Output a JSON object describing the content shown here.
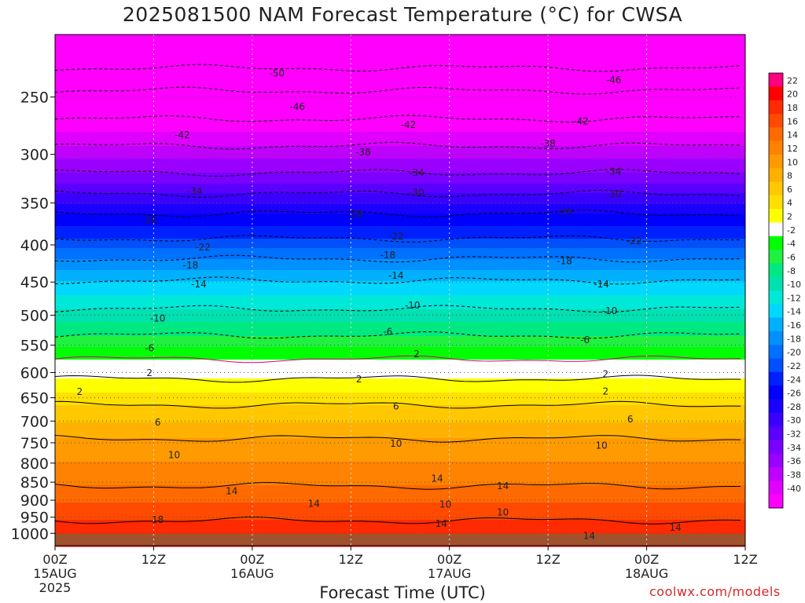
{
  "title": "2025081500 NAM Forecast Temperature (°C) for CWSA",
  "xlabel": "Forecast Time (UTC)",
  "credit": "coolwx.com/models",
  "chart_data": {
    "type": "heatmap",
    "title": "2025081500 NAM Forecast Temperature (°C) for CWSA",
    "xlabel": "Forecast Time (UTC)",
    "ylabel": "",
    "x_range_hours": [
      0,
      84
    ],
    "y_scale": "log (pressure, inverted)",
    "y_range_hpa": [
      1040,
      205
    ],
    "x_ticks": [
      {
        "h": 0,
        "t": "00Z",
        "d": "15AUG",
        "y": "2025"
      },
      {
        "h": 12,
        "t": "12Z",
        "d": "",
        "y": ""
      },
      {
        "h": 24,
        "t": "00Z",
        "d": "16AUG",
        "y": ""
      },
      {
        "h": 36,
        "t": "12Z",
        "d": "",
        "y": ""
      },
      {
        "h": 48,
        "t": "00Z",
        "d": "17AUG",
        "y": ""
      },
      {
        "h": 60,
        "t": "12Z",
        "d": "",
        "y": ""
      },
      {
        "h": 72,
        "t": "00Z",
        "d": "18AUG",
        "y": ""
      },
      {
        "h": 84,
        "t": "12Z",
        "d": "",
        "y": ""
      }
    ],
    "y_ticks": [
      "250",
      "300",
      "350",
      "400",
      "450",
      "500",
      "550",
      "600",
      "650",
      "700",
      "750",
      "800",
      "850",
      "900",
      "950",
      "1000"
    ],
    "colorbar": {
      "labels": [
        "22",
        "20",
        "18",
        "16",
        "14",
        "12",
        "10",
        "8",
        "6",
        "4",
        "2",
        "-2",
        "-4",
        "-6",
        "-8",
        "-10",
        "-12",
        "-14",
        "-16",
        "-18",
        "-20",
        "-22",
        "-24",
        "-26",
        "-28",
        "-30",
        "-32",
        "-34",
        "-36",
        "-38",
        "-40"
      ],
      "colors": [
        "#ff0080",
        "#ff0000",
        "#ff2a00",
        "#ff4a00",
        "#ff6a00",
        "#ff8200",
        "#ff9a00",
        "#ffb000",
        "#ffc800",
        "#ffe000",
        "#ffff00",
        "#ffffff",
        "#00ff00",
        "#20f040",
        "#00e880",
        "#00e0b0",
        "#00e8d8",
        "#00d8ff",
        "#00b0ff",
        "#0090ff",
        "#0070ff",
        "#0050ff",
        "#0020ff",
        "#0000ff",
        "#1a00ff",
        "#3a00ff",
        "#5a00ff",
        "#7a00ff",
        "#9a00ff",
        "#c000ff",
        "#e000ff",
        "#ff00ff"
      ]
    },
    "isotherm_profile_hpa": [
      {
        "temp": -50,
        "p": 228
      },
      {
        "temp": -46,
        "p": 245
      },
      {
        "temp": -42,
        "p": 268
      },
      {
        "temp": -38,
        "p": 292
      },
      {
        "temp": -34,
        "p": 318
      },
      {
        "temp": -30,
        "p": 340
      },
      {
        "temp": -26,
        "p": 362
      },
      {
        "temp": -22,
        "p": 392
      },
      {
        "temp": -18,
        "p": 418
      },
      {
        "temp": -14,
        "p": 448
      },
      {
        "temp": -10,
        "p": 490
      },
      {
        "temp": -6,
        "p": 533
      },
      {
        "temp": -2,
        "p": 575
      },
      {
        "temp": 2,
        "p": 612
      },
      {
        "temp": 6,
        "p": 665
      },
      {
        "temp": 10,
        "p": 740
      },
      {
        "temp": 14,
        "p": 860
      },
      {
        "temp": 18,
        "p": 960
      }
    ],
    "contour_labels": [
      {
        "v": "-50",
        "h": 27,
        "p": 232
      },
      {
        "v": "-46",
        "h": 29.5,
        "p": 258
      },
      {
        "v": "-46",
        "h": 68,
        "p": 237
      },
      {
        "v": "-42",
        "h": 15.5,
        "p": 282
      },
      {
        "v": "-42",
        "h": 43,
        "p": 273
      },
      {
        "v": "-42",
        "h": 64,
        "p": 270
      },
      {
        "v": "-38",
        "h": 37.5,
        "p": 298
      },
      {
        "v": "-38",
        "h": 60,
        "p": 290
      },
      {
        "v": "-34",
        "h": 17,
        "p": 337
      },
      {
        "v": "-34",
        "h": 44,
        "p": 318
      },
      {
        "v": "-34",
        "h": 68,
        "p": 317
      },
      {
        "v": "-30",
        "h": 44,
        "p": 339
      },
      {
        "v": "-30",
        "h": 68,
        "p": 340
      },
      {
        "v": "-26",
        "h": 11.5,
        "p": 370
      },
      {
        "v": "-26",
        "h": 36.5,
        "p": 363
      },
      {
        "v": "-26",
        "h": 62,
        "p": 360
      },
      {
        "v": "-22",
        "h": 18,
        "p": 403
      },
      {
        "v": "-22",
        "h": 41.5,
        "p": 389
      },
      {
        "v": "-22",
        "h": 70.5,
        "p": 395
      },
      {
        "v": "-18",
        "h": 16.5,
        "p": 427
      },
      {
        "v": "-18",
        "h": 40.5,
        "p": 413
      },
      {
        "v": "-18",
        "h": 62,
        "p": 421
      },
      {
        "v": "-14",
        "h": 17.5,
        "p": 453
      },
      {
        "v": "-14",
        "h": 41.5,
        "p": 441
      },
      {
        "v": "-14",
        "h": 66.5,
        "p": 453
      },
      {
        "v": "-10",
        "h": 12.5,
        "p": 505
      },
      {
        "v": "-10",
        "h": 43.5,
        "p": 485
      },
      {
        "v": "-10",
        "h": 67.5,
        "p": 493
      },
      {
        "v": "-6",
        "h": 11.5,
        "p": 555
      },
      {
        "v": "-6",
        "h": 40.5,
        "p": 527
      },
      {
        "v": "-6",
        "h": 64.5,
        "p": 541
      },
      {
        "v": "2",
        "h": 11.5,
        "p": 601
      },
      {
        "v": "2",
        "h": 44,
        "p": 566
      },
      {
        "v": "2",
        "h": 67,
        "p": 603
      },
      {
        "v": "2",
        "h": 3,
        "p": 638
      },
      {
        "v": "2",
        "h": 37,
        "p": 613
      },
      {
        "v": "2",
        "h": 67,
        "p": 637
      },
      {
        "v": "6",
        "h": 41.5,
        "p": 668
      },
      {
        "v": "6",
        "h": 12.5,
        "p": 703
      },
      {
        "v": "6",
        "h": 70,
        "p": 696
      },
      {
        "v": "10",
        "h": 41.5,
        "p": 752
      },
      {
        "v": "10",
        "h": 14.5,
        "p": 780
      },
      {
        "v": "10",
        "h": 66.5,
        "p": 757
      },
      {
        "v": "14",
        "h": 46.5,
        "p": 840
      },
      {
        "v": "14",
        "h": 54.5,
        "p": 860
      },
      {
        "v": "14",
        "h": 21.5,
        "p": 875
      },
      {
        "v": "14",
        "h": 31.5,
        "p": 910
      },
      {
        "v": "14",
        "h": 47,
        "p": 970
      },
      {
        "v": "14",
        "h": 75.5,
        "p": 982
      },
      {
        "v": "14",
        "h": 65,
        "p": 1008
      },
      {
        "v": "10",
        "h": 47.5,
        "p": 912
      },
      {
        "v": "10",
        "h": 54.5,
        "p": 935
      },
      {
        "v": "18",
        "h": 12.5,
        "p": 958
      }
    ]
  }
}
